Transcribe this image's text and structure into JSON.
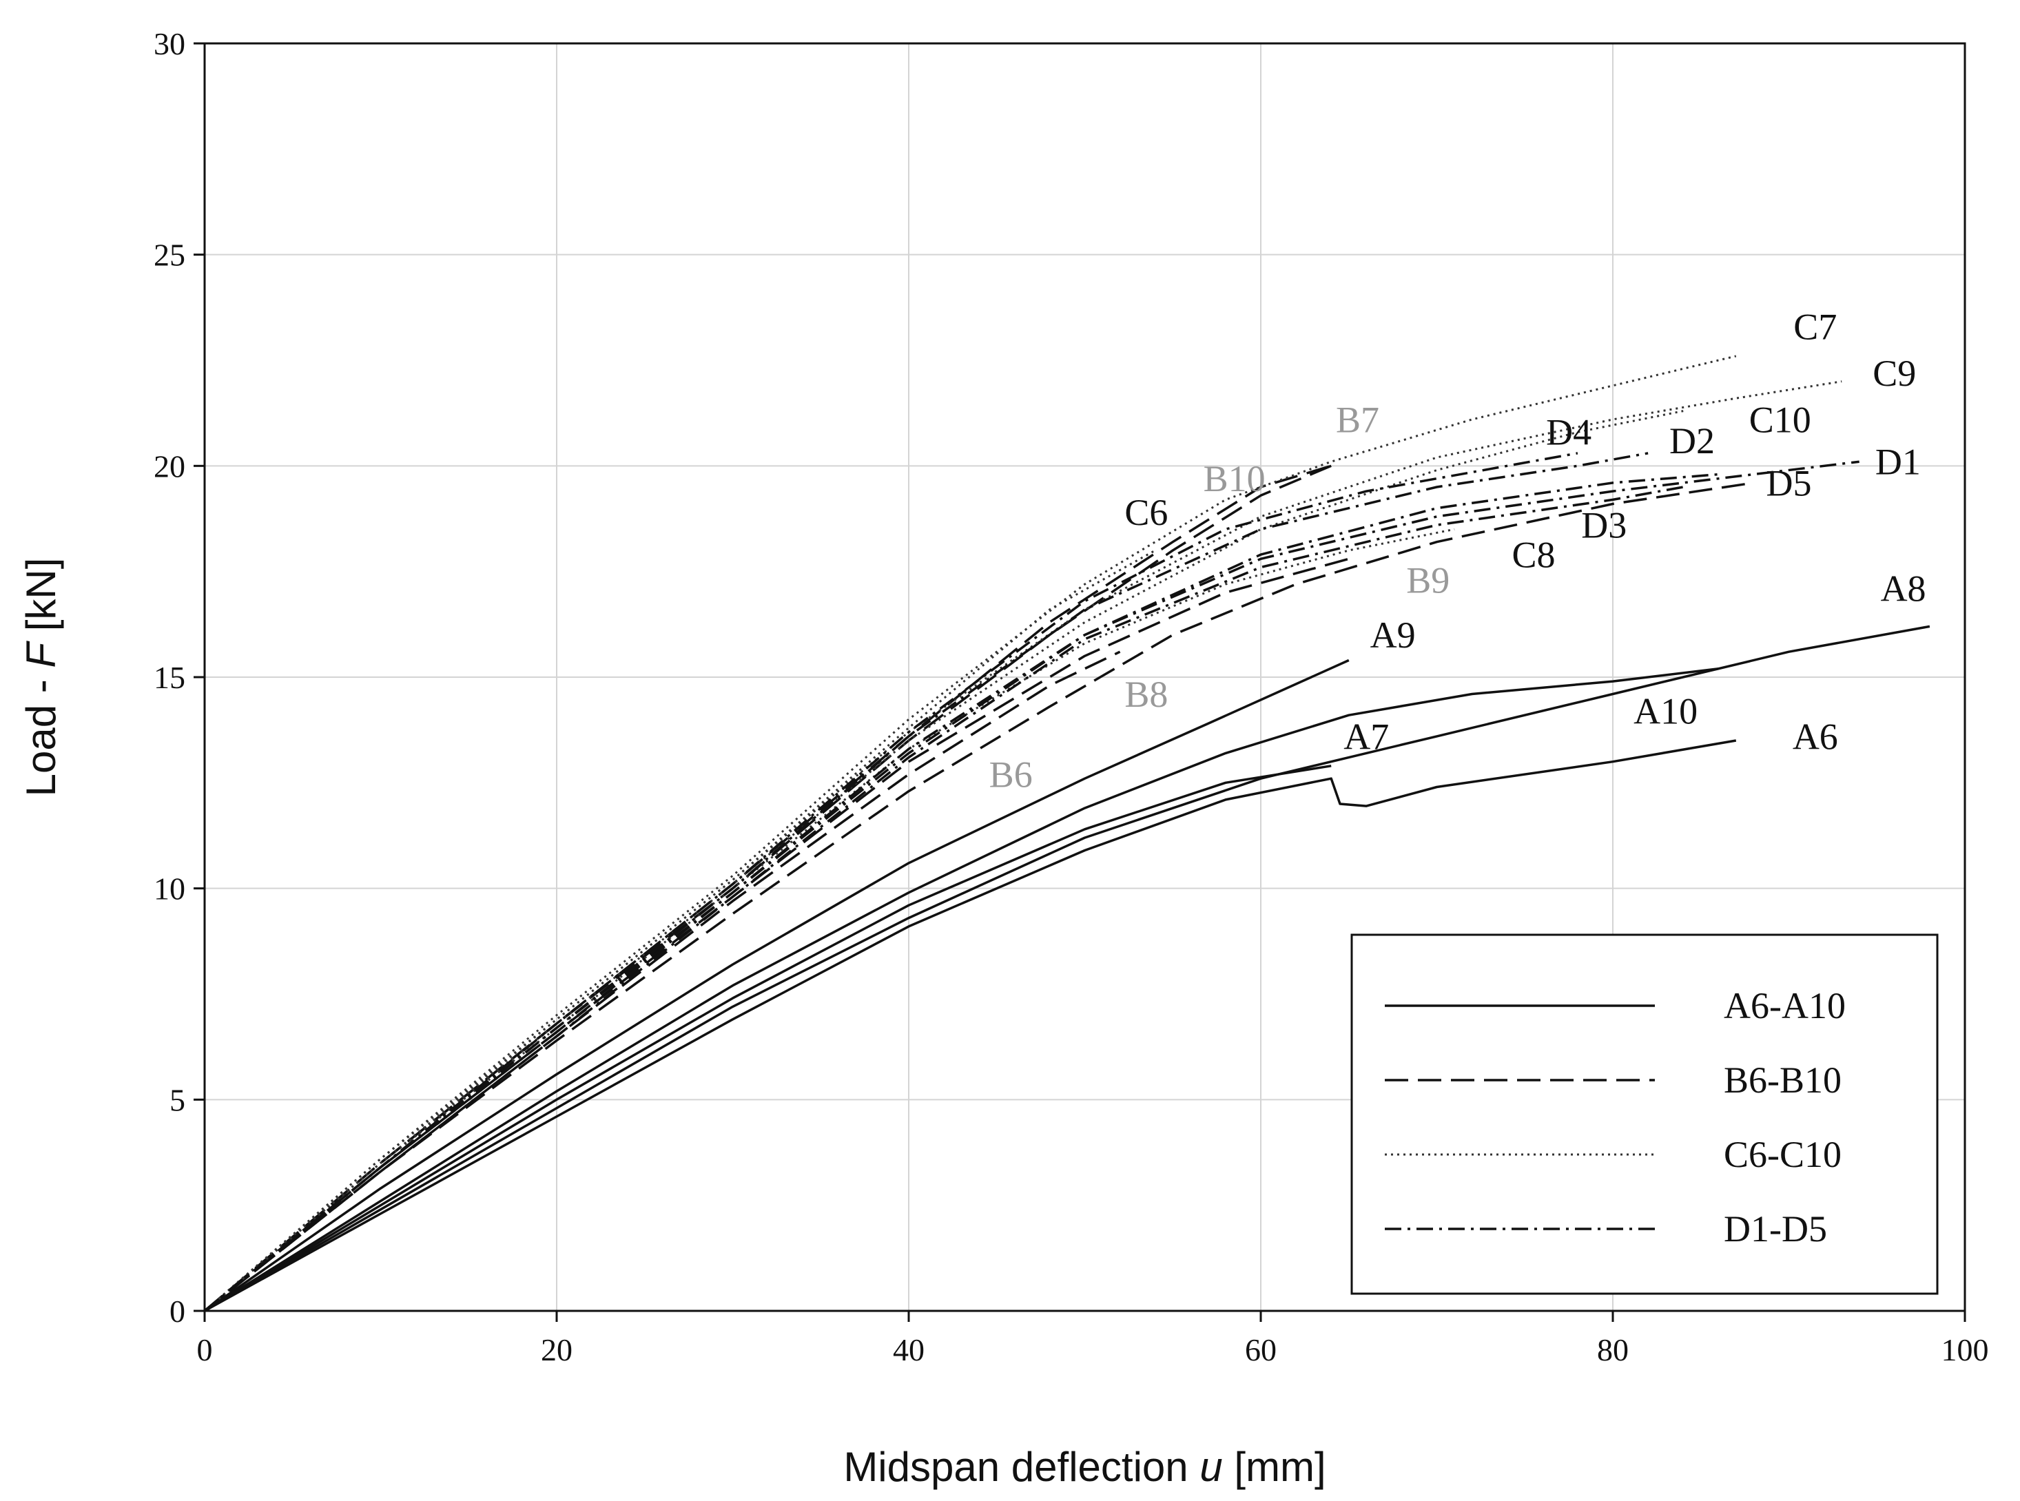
{
  "chart_data": {
    "type": "line",
    "title": "",
    "xlabel": {
      "prefix": "Midspan deflection ",
      "var": "u",
      "suffix": " [mm]"
    },
    "ylabel": {
      "prefix": "Load - ",
      "var": "F",
      "suffix": " [kN]"
    },
    "xlim": [
      0,
      100
    ],
    "ylim": [
      0,
      30
    ],
    "xticks": [
      0,
      20,
      40,
      60,
      80,
      100
    ],
    "yticks": [
      0,
      5,
      10,
      15,
      20,
      25,
      30
    ],
    "grid": true,
    "legend": {
      "position": "bottom-right",
      "entries": [
        {
          "label": "A6-A10",
          "style": "solid"
        },
        {
          "label": "B6-B10",
          "style": "dashed"
        },
        {
          "label": "C6-C10",
          "style": "dotted"
        },
        {
          "label": "D1-D5",
          "style": "dashdot"
        }
      ]
    },
    "series": [
      {
        "name": "A6",
        "group": "A",
        "style": "solid",
        "points": [
          [
            0,
            0
          ],
          [
            10,
            2.3
          ],
          [
            20,
            4.6
          ],
          [
            30,
            6.9
          ],
          [
            40,
            9.1
          ],
          [
            50,
            10.9
          ],
          [
            58,
            12.1
          ],
          [
            64,
            12.6
          ],
          [
            64.5,
            12.0
          ],
          [
            66,
            11.95
          ],
          [
            70,
            12.4
          ],
          [
            80,
            13.0
          ],
          [
            87,
            13.5
          ]
        ],
        "label_at": [
          91.5,
          13.3
        ],
        "label_color": "#111111"
      },
      {
        "name": "A7",
        "group": "A",
        "style": "solid",
        "points": [
          [
            0,
            0
          ],
          [
            10,
            2.5
          ],
          [
            20,
            5.0
          ],
          [
            30,
            7.4
          ],
          [
            40,
            9.6
          ],
          [
            50,
            11.4
          ],
          [
            58,
            12.5
          ],
          [
            64,
            12.9
          ]
        ],
        "label_at": [
          66,
          13.3
        ],
        "label_color": "#111111"
      },
      {
        "name": "A8",
        "group": "A",
        "style": "solid",
        "points": [
          [
            0,
            0
          ],
          [
            10,
            2.4
          ],
          [
            20,
            4.8
          ],
          [
            30,
            7.2
          ],
          [
            40,
            9.3
          ],
          [
            50,
            11.2
          ],
          [
            60,
            12.6
          ],
          [
            70,
            13.6
          ],
          [
            80,
            14.6
          ],
          [
            90,
            15.6
          ],
          [
            98,
            16.2
          ]
        ],
        "label_at": [
          96.5,
          16.8
        ],
        "label_color": "#111111"
      },
      {
        "name": "A9",
        "group": "A",
        "style": "solid",
        "points": [
          [
            0,
            0
          ],
          [
            10,
            2.9
          ],
          [
            20,
            5.6
          ],
          [
            30,
            8.2
          ],
          [
            40,
            10.6
          ],
          [
            50,
            12.6
          ],
          [
            57,
            13.9
          ],
          [
            65,
            15.4
          ]
        ],
        "label_at": [
          67.5,
          15.7
        ],
        "label_color": "#111111"
      },
      {
        "name": "A10",
        "group": "A",
        "style": "solid",
        "points": [
          [
            0,
            0
          ],
          [
            10,
            2.6
          ],
          [
            20,
            5.2
          ],
          [
            30,
            7.7
          ],
          [
            40,
            9.9
          ],
          [
            50,
            11.9
          ],
          [
            58,
            13.2
          ],
          [
            65,
            14.1
          ],
          [
            72,
            14.6
          ],
          [
            80,
            14.9
          ],
          [
            86,
            15.2
          ]
        ],
        "label_at": [
          83,
          13.9
        ],
        "label_color": "#111111"
      },
      {
        "name": "B6",
        "group": "B",
        "style": "dashed",
        "points": [
          [
            0,
            0
          ],
          [
            10,
            3.3
          ],
          [
            20,
            6.4
          ],
          [
            30,
            9.4
          ],
          [
            40,
            12.3
          ],
          [
            48,
            14.3
          ],
          [
            55,
            16.0
          ],
          [
            62,
            17.2
          ],
          [
            70,
            18.2
          ],
          [
            80,
            19.1
          ],
          [
            88,
            19.6
          ]
        ],
        "label_at": [
          45.8,
          12.4
        ],
        "label_color": "#999999"
      },
      {
        "name": "B7",
        "group": "B",
        "style": "dashed",
        "points": [
          [
            0,
            0
          ],
          [
            10,
            3.5
          ],
          [
            20,
            6.8
          ],
          [
            30,
            10.0
          ],
          [
            40,
            13.5
          ],
          [
            48,
            16.0
          ],
          [
            55,
            18.0
          ],
          [
            60,
            19.3
          ],
          [
            64,
            20.0
          ]
        ],
        "label_at": [
          65.5,
          20.8
        ],
        "label_color": "#999999"
      },
      {
        "name": "B8",
        "group": "B",
        "style": "dashed",
        "points": [
          [
            0,
            0
          ],
          [
            10,
            3.3
          ],
          [
            20,
            6.5
          ],
          [
            30,
            9.7
          ],
          [
            40,
            12.7
          ],
          [
            48,
            14.8
          ],
          [
            52,
            15.6
          ]
        ],
        "label_at": [
          53.5,
          14.3
        ],
        "label_color": "#999999"
      },
      {
        "name": "B9",
        "group": "B",
        "style": "dashed",
        "points": [
          [
            0,
            0
          ],
          [
            10,
            3.4
          ],
          [
            20,
            6.6
          ],
          [
            30,
            9.8
          ],
          [
            40,
            13.0
          ],
          [
            50,
            15.5
          ],
          [
            58,
            17.0
          ],
          [
            65,
            17.8
          ]
        ],
        "label_at": [
          69.5,
          17.0
        ],
        "label_color": "#999999"
      },
      {
        "name": "B10",
        "group": "B",
        "style": "dashed",
        "points": [
          [
            0,
            0
          ],
          [
            10,
            3.5
          ],
          [
            20,
            6.8
          ],
          [
            30,
            10.1
          ],
          [
            40,
            13.6
          ],
          [
            48,
            16.3
          ],
          [
            55,
            18.2
          ],
          [
            60,
            19.5
          ],
          [
            64,
            20.0
          ]
        ],
        "label_at": [
          58.5,
          19.4
        ],
        "label_color": "#999999"
      },
      {
        "name": "C6",
        "group": "C",
        "style": "dotted",
        "points": [
          [
            0,
            0
          ],
          [
            10,
            3.6
          ],
          [
            20,
            6.9
          ],
          [
            30,
            10.2
          ],
          [
            40,
            13.8
          ],
          [
            48,
            16.6
          ],
          [
            54,
            18.0
          ]
        ],
        "label_at": [
          53.5,
          18.6
        ],
        "label_color": "#111111"
      },
      {
        "name": "C7",
        "group": "C",
        "style": "dotted",
        "points": [
          [
            0,
            0
          ],
          [
            10,
            3.6
          ],
          [
            20,
            7.0
          ],
          [
            30,
            10.3
          ],
          [
            40,
            14.0
          ],
          [
            50,
            17.2
          ],
          [
            58,
            19.2
          ],
          [
            64,
            20.1
          ],
          [
            72,
            21.1
          ],
          [
            80,
            21.9
          ],
          [
            87,
            22.6
          ]
        ],
        "label_at": [
          91.5,
          23.0
        ],
        "label_color": "#111111"
      },
      {
        "name": "C8",
        "group": "C",
        "style": "dotted",
        "points": [
          [
            0,
            0
          ],
          [
            10,
            3.5
          ],
          [
            20,
            6.7
          ],
          [
            30,
            10.0
          ],
          [
            40,
            13.3
          ],
          [
            50,
            15.8
          ],
          [
            58,
            17.2
          ],
          [
            65,
            18.0
          ],
          [
            71,
            18.5
          ]
        ],
        "label_at": [
          75.5,
          17.6
        ],
        "label_color": "#111111"
      },
      {
        "name": "C9",
        "group": "C",
        "style": "dotted",
        "points": [
          [
            0,
            0
          ],
          [
            10,
            3.5
          ],
          [
            20,
            6.9
          ],
          [
            30,
            10.2
          ],
          [
            40,
            13.7
          ],
          [
            50,
            16.6
          ],
          [
            60,
            18.8
          ],
          [
            70,
            20.2
          ],
          [
            80,
            21.1
          ],
          [
            87,
            21.6
          ],
          [
            93,
            22.0
          ]
        ],
        "label_at": [
          96,
          21.9
        ],
        "label_color": "#111111"
      },
      {
        "name": "C10",
        "group": "C",
        "style": "dotted",
        "points": [
          [
            0,
            0
          ],
          [
            10,
            3.5
          ],
          [
            20,
            6.8
          ],
          [
            30,
            10.1
          ],
          [
            40,
            13.5
          ],
          [
            50,
            16.3
          ],
          [
            60,
            18.5
          ],
          [
            70,
            19.9
          ],
          [
            78,
            20.8
          ],
          [
            84,
            21.3
          ]
        ],
        "label_at": [
          89.5,
          20.8
        ],
        "label_color": "#111111"
      },
      {
        "name": "D1",
        "group": "D",
        "style": "dashdot",
        "points": [
          [
            0,
            0
          ],
          [
            10,
            3.4
          ],
          [
            20,
            6.7
          ],
          [
            30,
            9.9
          ],
          [
            40,
            13.3
          ],
          [
            50,
            16.0
          ],
          [
            60,
            17.8
          ],
          [
            70,
            18.8
          ],
          [
            80,
            19.4
          ],
          [
            88,
            19.8
          ],
          [
            94,
            20.1
          ]
        ],
        "label_at": [
          96.2,
          19.8
        ],
        "label_color": "#111111"
      },
      {
        "name": "D2",
        "group": "D",
        "style": "dashdot",
        "points": [
          [
            0,
            0
          ],
          [
            10,
            3.4
          ],
          [
            20,
            6.7
          ],
          [
            30,
            10.0
          ],
          [
            40,
            13.6
          ],
          [
            50,
            16.6
          ],
          [
            60,
            18.5
          ],
          [
            70,
            19.5
          ],
          [
            78,
            20.0
          ],
          [
            82,
            20.3
          ]
        ],
        "label_at": [
          84.5,
          20.3
        ],
        "label_color": "#111111"
      },
      {
        "name": "D3",
        "group": "D",
        "style": "dashdot",
        "points": [
          [
            0,
            0
          ],
          [
            10,
            3.3
          ],
          [
            20,
            6.5
          ],
          [
            30,
            9.8
          ],
          [
            40,
            13.1
          ],
          [
            50,
            15.9
          ],
          [
            60,
            17.6
          ],
          [
            70,
            18.6
          ],
          [
            80,
            19.2
          ],
          [
            84,
            19.5
          ]
        ],
        "label_at": [
          79.5,
          18.3
        ],
        "label_color": "#111111"
      },
      {
        "name": "D4",
        "group": "D",
        "style": "dashdot",
        "points": [
          [
            0,
            0
          ],
          [
            10,
            3.4
          ],
          [
            20,
            6.8
          ],
          [
            30,
            10.1
          ],
          [
            40,
            13.7
          ],
          [
            50,
            16.8
          ],
          [
            58,
            18.5
          ],
          [
            66,
            19.4
          ],
          [
            74,
            20.0
          ],
          [
            78,
            20.3
          ]
        ],
        "label_at": [
          77.5,
          20.5
        ],
        "label_color": "#111111"
      },
      {
        "name": "D5",
        "group": "D",
        "style": "dashdot",
        "points": [
          [
            0,
            0
          ],
          [
            10,
            3.4
          ],
          [
            20,
            6.6
          ],
          [
            30,
            9.9
          ],
          [
            40,
            13.2
          ],
          [
            50,
            16.0
          ],
          [
            60,
            17.9
          ],
          [
            70,
            19.0
          ],
          [
            80,
            19.6
          ],
          [
            86,
            19.8
          ]
        ],
        "label_at": [
          90,
          19.3
        ],
        "label_color": "#111111"
      }
    ]
  }
}
